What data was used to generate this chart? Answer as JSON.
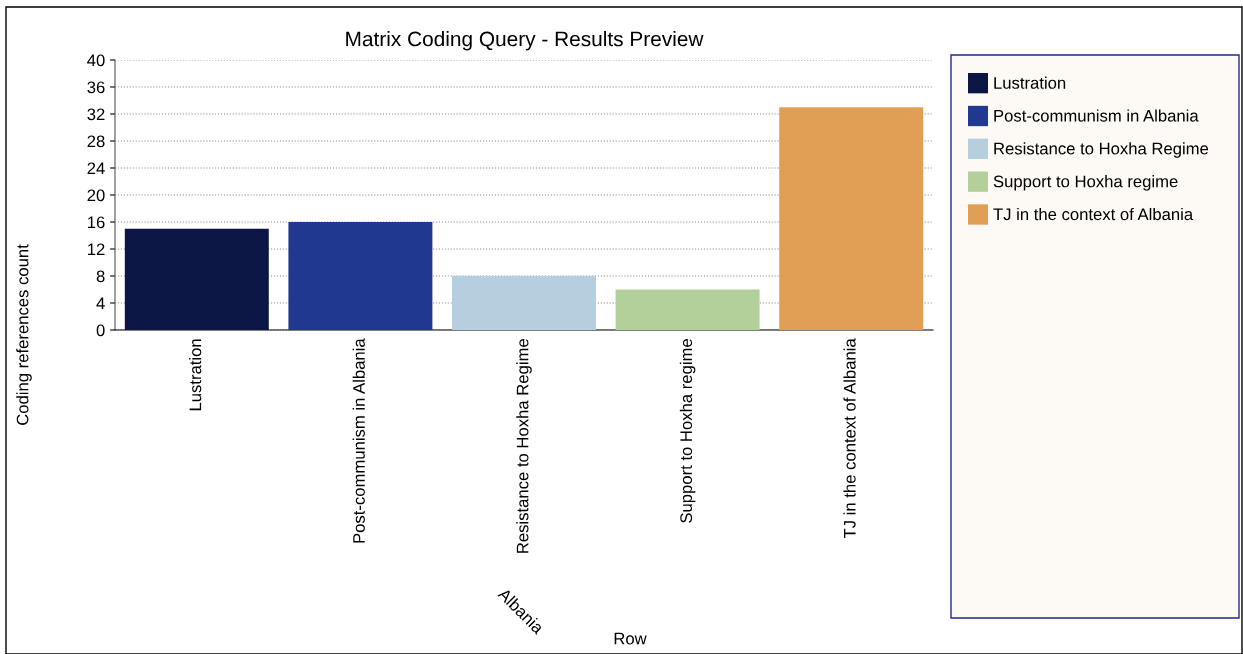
{
  "chart_data": {
    "type": "bar",
    "title": "Matrix Coding Query - Results Preview",
    "xlabel": "Row",
    "ylabel": "Coding references count",
    "categories": [
      "Lustration",
      "Post-communism in Albania",
      "Resistance to Hoxha Regime",
      "Support to Hoxha regime",
      "TJ in the context of Albania"
    ],
    "series": [
      {
        "name": "Lustration",
        "color": "#0b1645",
        "values": [
          15,
          null,
          null,
          null,
          null
        ]
      },
      {
        "name": "Post-communism in Albania",
        "color": "#20388f",
        "values": [
          null,
          16,
          null,
          null,
          null
        ]
      },
      {
        "name": "Resistance to Hoxha Regime",
        "color": "#b5cfdf",
        "values": [
          null,
          null,
          8,
          null,
          null
        ]
      },
      {
        "name": "Support to Hoxha regime",
        "color": "#b3d09a",
        "values": [
          null,
          null,
          null,
          6,
          null
        ]
      },
      {
        "name": "TJ in the context of Albania",
        "color": "#e09f55",
        "values": [
          null,
          null,
          null,
          null,
          33
        ]
      }
    ],
    "stacked": true,
    "ylim": [
      0,
      40
    ],
    "yticks": [
      0,
      4,
      8,
      12,
      16,
      20,
      24,
      28,
      32,
      36,
      40
    ],
    "grid": "y",
    "legend": "right",
    "annotations": [
      "Albania"
    ]
  }
}
